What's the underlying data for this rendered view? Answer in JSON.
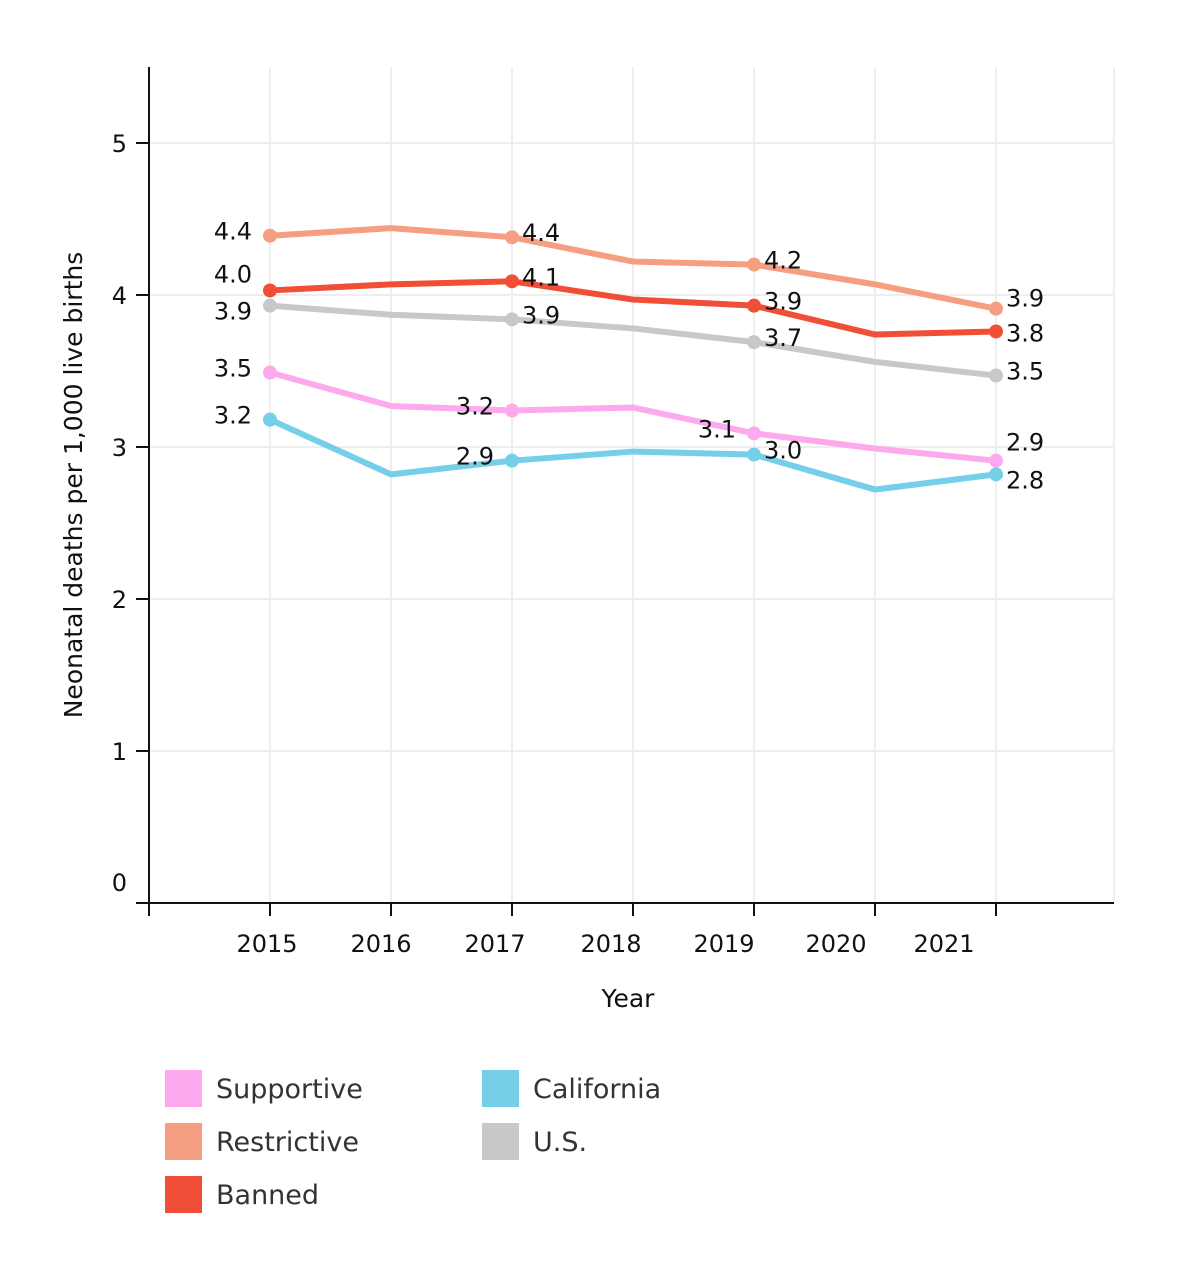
{
  "chart_data": {
    "type": "line",
    "title": "",
    "xlabel": "Year",
    "ylabel": "Neonatal deaths per 1,000 live births",
    "x": [
      2015,
      2016,
      2017,
      2018,
      2019,
      2020,
      2021
    ],
    "x_tick_labels": [
      "2015",
      "2016",
      "2017",
      "2018",
      "2019",
      "2020",
      "2021"
    ],
    "y_tick_labels": [
      "0",
      "1",
      "2",
      "3",
      "4",
      "5"
    ],
    "ylim": [
      0,
      5.5
    ],
    "xlim": [
      2014,
      2022
    ],
    "grid": true,
    "legend_position": "bottom",
    "series": [
      {
        "name": "Supportive",
        "color": "#FCA9EE",
        "values": [
          3.49,
          3.27,
          3.24,
          3.26,
          3.09,
          2.99,
          2.91
        ],
        "labels": {
          "2015": "3.5",
          "2017": "3.2",
          "2019": "3.1",
          "2021": "2.9"
        }
      },
      {
        "name": "Restrictive",
        "color": "#F59E82",
        "values": [
          4.39,
          4.44,
          4.38,
          4.22,
          4.2,
          4.07,
          3.91
        ],
        "labels": {
          "2015": "4.4",
          "2017": "4.4",
          "2019": "4.2",
          "2021": "3.9"
        }
      },
      {
        "name": "Banned",
        "color": "#F04E37",
        "values": [
          4.03,
          4.07,
          4.09,
          3.97,
          3.93,
          3.74,
          3.76
        ],
        "labels": {
          "2015": "4.0",
          "2017": "4.1",
          "2019": "3.9",
          "2021": "3.8"
        }
      },
      {
        "name": "California",
        "color": "#76CFE8",
        "values": [
          3.18,
          2.82,
          2.91,
          2.97,
          2.95,
          2.72,
          2.82
        ],
        "labels": {
          "2015": "3.2",
          "2017": "2.9",
          "2019": "3.0",
          "2021": "2.8"
        }
      },
      {
        "name": "U.S.",
        "color": "#C8C8C8",
        "values": [
          3.93,
          3.87,
          3.84,
          3.78,
          3.69,
          3.56,
          3.47
        ],
        "labels": {
          "2015": "3.9",
          "2017": "3.9",
          "2019": "3.7",
          "2021": "3.5"
        }
      }
    ]
  }
}
